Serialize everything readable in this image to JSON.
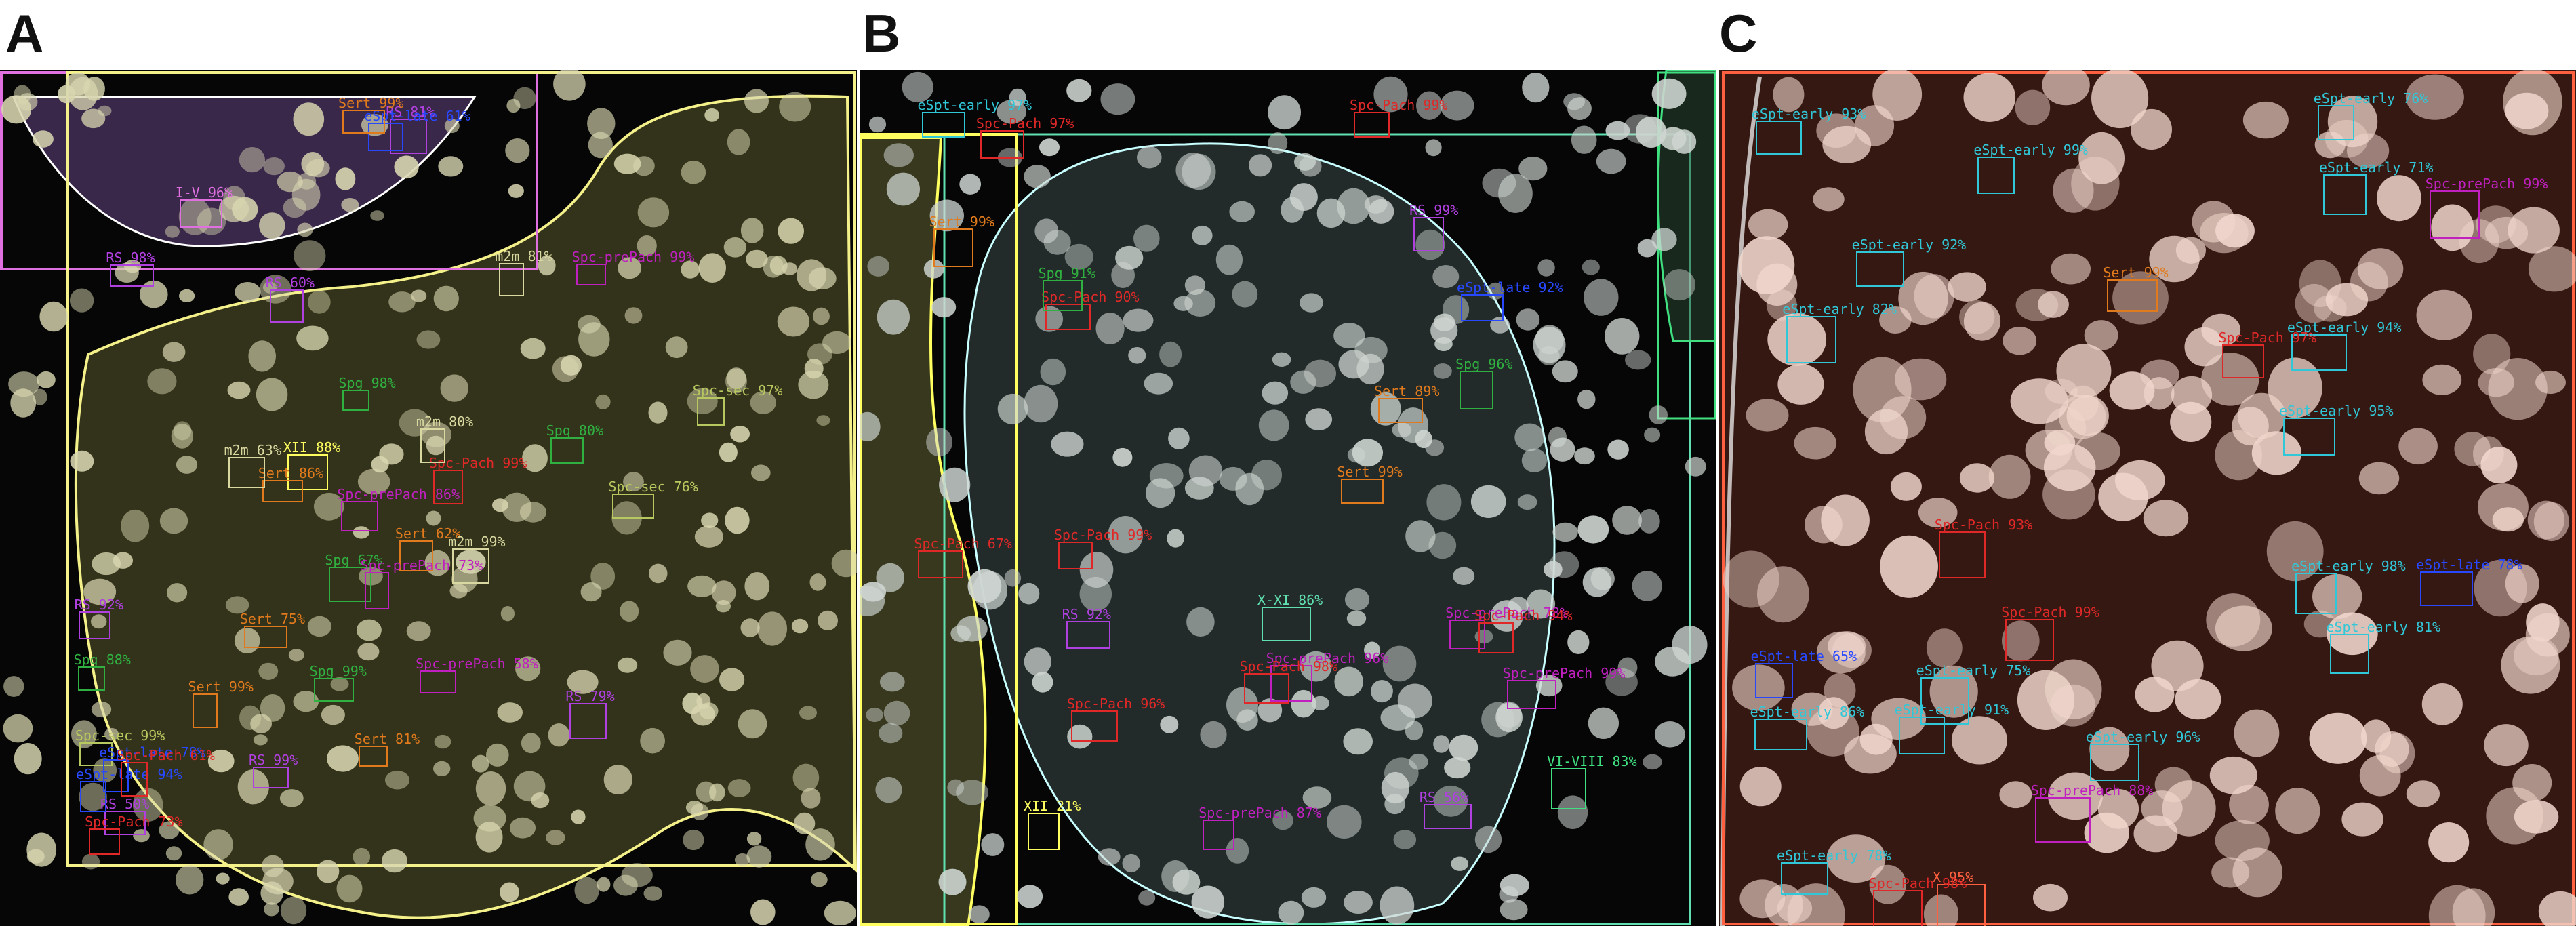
{
  "panels": {
    "a": {
      "letter": "A"
    },
    "b": {
      "letter": "B"
    },
    "c": {
      "letter": "C"
    }
  },
  "colors": {
    "sert": "#e07a1c",
    "spc_pach": "#e02828",
    "spc_prepach": "#c020c0",
    "rs": "#b040e0",
    "espt_early": "#30c8d8",
    "espt_late": "#2848ff",
    "spg": "#30b040",
    "spc_sec": "#b8c860",
    "m2m": "#d8d8a0",
    "stage_i_v": "#e070e0",
    "stage_xii": "#ffff60",
    "stage_x_xi": "#60e0b0",
    "stage_vi_viii": "#40e080",
    "stage_x": "#ff6040"
  },
  "labels_a": [
    {
      "t": "I-V 96%",
      "c": "stage_i_v"
    },
    {
      "t": "XII 88%",
      "c": "stage_xii"
    },
    {
      "t": "Spg 88%",
      "c": "spg"
    },
    {
      "t": "Spc-Pach 99%",
      "c": "spc_pach"
    },
    {
      "t": "Sert 75%",
      "c": "sert"
    },
    {
      "t": "Spc-prePach 99%",
      "c": "spc_prepach"
    },
    {
      "t": "RS 98%",
      "c": "rs"
    },
    {
      "t": "RS 99%",
      "c": "rs"
    },
    {
      "t": "RS 50%",
      "c": "rs"
    },
    {
      "t": "RS 81%",
      "c": "rs"
    },
    {
      "t": "RS 92%",
      "c": "rs"
    },
    {
      "t": "Spg 80%",
      "c": "spg"
    },
    {
      "t": "Spg 67%",
      "c": "spg"
    },
    {
      "t": "Sert 99%",
      "c": "sert"
    },
    {
      "t": "Sert 86%",
      "c": "sert"
    },
    {
      "t": "Sert 62%",
      "c": "sert"
    },
    {
      "t": "Sert 81%",
      "c": "sert"
    },
    {
      "t": "Spc-prePach 58%",
      "c": "spc_prepach"
    },
    {
      "t": "Spc-prePach 73%",
      "c": "spc_prepach"
    },
    {
      "t": "Spc-prePach 86%",
      "c": "spc_prepach"
    },
    {
      "t": "Spc-sec 99%",
      "c": "spc_sec"
    },
    {
      "t": "Spc-sec 97%",
      "c": "spc_sec"
    },
    {
      "t": "Spc-sec 76%",
      "c": "spc_sec"
    },
    {
      "t": "m2m 80%",
      "c": "m2m"
    },
    {
      "t": "m2m 99%",
      "c": "m2m"
    },
    {
      "t": "m2m 63%",
      "c": "m2m"
    },
    {
      "t": "m2m 81%",
      "c": "m2m"
    },
    {
      "t": "eSpt-late 78%",
      "c": "espt_late"
    },
    {
      "t": "eSpt-late 61%",
      "c": "espt_late"
    },
    {
      "t": "eSpt-late 94%",
      "c": "espt_late"
    },
    {
      "t": "Spc-Pach 61%",
      "c": "spc_pach"
    },
    {
      "t": "Spc-Pach 73%",
      "c": "spc_pach"
    },
    {
      "t": "Sert 99%",
      "c": "sert"
    },
    {
      "t": "RS 60%",
      "c": "rs"
    },
    {
      "t": "RS 79%",
      "c": "rs"
    },
    {
      "t": "Spg 98%",
      "c": "spg"
    },
    {
      "t": "Spg 99%",
      "c": "spg"
    }
  ],
  "labels_b": [
    {
      "t": "Spc-Pach 99%",
      "c": "spc_pach"
    },
    {
      "t": "VI-VIII 83%",
      "c": "stage_vi_viii"
    },
    {
      "t": "XII 21%",
      "c": "stage_xii"
    },
    {
      "t": "X-XI 86%",
      "c": "stage_x_xi"
    },
    {
      "t": "Sert 99%",
      "c": "sert"
    },
    {
      "t": "Spc-prePach 78%",
      "c": "spc_prepach"
    },
    {
      "t": "Spc-prePach 87%",
      "c": "spc_prepach"
    },
    {
      "t": "Spc-Pach 67%",
      "c": "spc_pach"
    },
    {
      "t": "Spc-Pach 97%",
      "c": "spc_pach"
    },
    {
      "t": "Spc-Pach 99%",
      "c": "spc_pach"
    },
    {
      "t": "Spc-prePach 96%",
      "c": "spc_prepach"
    },
    {
      "t": "Spc-prePach 99%",
      "c": "spc_prepach"
    },
    {
      "t": "Spc-Pach 94%",
      "c": "spc_pach"
    },
    {
      "t": "Spc-Pach 90%",
      "c": "spc_pach"
    },
    {
      "t": "Sert 89%",
      "c": "sert"
    },
    {
      "t": "Sert 99%",
      "c": "sert"
    },
    {
      "t": "RS 56%",
      "c": "rs"
    },
    {
      "t": "RS 92%",
      "c": "rs"
    },
    {
      "t": "RS 99%",
      "c": "rs"
    },
    {
      "t": "eSpt-late 92%",
      "c": "espt_late"
    },
    {
      "t": "Spg 91%",
      "c": "spg"
    },
    {
      "t": "Spg 96%",
      "c": "spg"
    },
    {
      "t": "eSpt-early 97%",
      "c": "espt_early"
    },
    {
      "t": "Spc-Pach 96%",
      "c": "spc_pach"
    },
    {
      "t": "Spc-Pach 98%",
      "c": "spc_pach"
    }
  ],
  "labels_c": [
    {
      "t": "X 95%",
      "c": "stage_x"
    },
    {
      "t": "Sert 99%",
      "c": "sert"
    },
    {
      "t": "eSpt-early 99%",
      "c": "espt_early"
    },
    {
      "t": "eSpt-early 96%",
      "c": "espt_early"
    },
    {
      "t": "eSpt-early 81%",
      "c": "espt_early"
    },
    {
      "t": "eSpt-early 71%",
      "c": "espt_early"
    },
    {
      "t": "eSpt-early 98%",
      "c": "espt_early"
    },
    {
      "t": "eSpt-early 94%",
      "c": "espt_early"
    },
    {
      "t": "eSpt-early 92%",
      "c": "espt_early"
    },
    {
      "t": "eSpt-early 76%",
      "c": "espt_early"
    },
    {
      "t": "eSpt-early 86%",
      "c": "espt_early"
    },
    {
      "t": "eSpt-early 93%",
      "c": "espt_early"
    },
    {
      "t": "eSpt-early 75%",
      "c": "espt_early"
    },
    {
      "t": "eSpt-early 91%",
      "c": "espt_early"
    },
    {
      "t": "eSpt-early 82%",
      "c": "espt_early"
    },
    {
      "t": "eSpt-early 95%",
      "c": "espt_early"
    },
    {
      "t": "eSpt-early 78%",
      "c": "espt_early"
    },
    {
      "t": "eSpt-late 78%",
      "c": "espt_late"
    },
    {
      "t": "eSpt-late 65%",
      "c": "espt_late"
    },
    {
      "t": "Spc-Pach 98%",
      "c": "spc_pach"
    },
    {
      "t": "Spc-Pach 99%",
      "c": "spc_pach"
    },
    {
      "t": "Spc-Pach 97%",
      "c": "spc_pach"
    },
    {
      "t": "Spc-Pach 93%",
      "c": "spc_pach"
    },
    {
      "t": "Spc-prePach 99%",
      "c": "spc_prepach"
    },
    {
      "t": "Spc-prePach 88%",
      "c": "spc_prepach"
    }
  ]
}
